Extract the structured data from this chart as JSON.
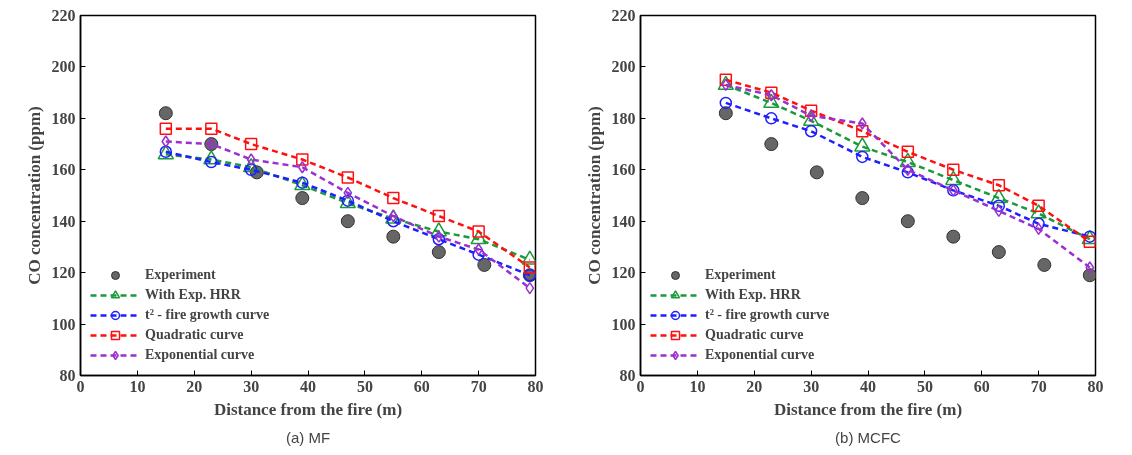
{
  "chart_data": [
    {
      "type": "line",
      "xlabel": "Distance from the fire (m)",
      "ylabel": "CO concentration (ppm)",
      "annotations": [
        "(a) MF"
      ],
      "xlim": [
        0,
        80
      ],
      "ylim": [
        80,
        220
      ],
      "xticks": [
        0,
        10,
        20,
        30,
        40,
        50,
        60,
        70,
        80
      ],
      "yticks": [
        80,
        100,
        120,
        140,
        160,
        180,
        200,
        220
      ],
      "grid": false,
      "legend": "bottom left",
      "line_style": "dashed",
      "series": [
        {
          "name": "Experiment",
          "type": "scatter",
          "marker": "circle",
          "color": "#666666",
          "x": [
            15,
            23,
            31,
            39,
            47,
            55,
            63,
            71,
            79
          ],
          "values": [
            182,
            170,
            159,
            149,
            140,
            134,
            128,
            123,
            119
          ]
        },
        {
          "name": "With Exp. HRR",
          "marker": "triangle",
          "color": "#1a9a3a",
          "x": [
            15,
            23,
            30,
            39,
            47,
            55,
            63,
            70,
            79
          ],
          "values": [
            166,
            164,
            161,
            154,
            147,
            141,
            136,
            133,
            125
          ]
        },
        {
          "name": "t² - fire growth curve",
          "marker": "circle",
          "color": "#1f1fff",
          "x": [
            15,
            23,
            30,
            39,
            47,
            55,
            63,
            70,
            79
          ],
          "values": [
            167,
            163,
            160,
            155,
            148,
            140,
            133,
            127,
            119
          ]
        },
        {
          "name": "Quadratic curve",
          "marker": "square",
          "color": "#ff1010",
          "x": [
            15,
            23,
            30,
            39,
            47,
            55,
            63,
            70,
            79
          ],
          "values": [
            176,
            176,
            170,
            164,
            157,
            149,
            142,
            136,
            122
          ]
        },
        {
          "name": "Exponential curve",
          "marker": "diamond",
          "color": "#9b30d0",
          "x": [
            15,
            23,
            30,
            39,
            47,
            55,
            63,
            70,
            79
          ],
          "values": [
            171,
            170,
            164,
            161,
            151,
            142,
            134,
            129,
            114
          ]
        }
      ]
    },
    {
      "type": "line",
      "xlabel": "Distance from the fire (m)",
      "ylabel": "CO concentration (ppm)",
      "annotations": [
        "(b) MCFC"
      ],
      "xlim": [
        0,
        80
      ],
      "ylim": [
        80,
        220
      ],
      "xticks": [
        0,
        10,
        20,
        30,
        40,
        50,
        60,
        70,
        80
      ],
      "yticks": [
        80,
        100,
        120,
        140,
        160,
        180,
        200,
        220
      ],
      "grid": false,
      "legend": "bottom left",
      "line_style": "dashed",
      "series": [
        {
          "name": "Experiment",
          "type": "scatter",
          "marker": "circle",
          "color": "#666666",
          "x": [
            15,
            23,
            31,
            39,
            47,
            55,
            63,
            71,
            79
          ],
          "values": [
            182,
            170,
            159,
            149,
            140,
            134,
            128,
            123,
            119
          ]
        },
        {
          "name": "With Exp. HRR",
          "marker": "triangle",
          "color": "#1a9a3a",
          "x": [
            15,
            23,
            30,
            39,
            47,
            55,
            63,
            70,
            79
          ],
          "values": [
            193,
            186,
            179,
            169,
            163,
            156,
            149,
            143,
            133
          ]
        },
        {
          "name": "t² - fire growth curve",
          "marker": "circle",
          "color": "#1f1fff",
          "x": [
            15,
            23,
            30,
            39,
            47,
            55,
            63,
            70,
            79
          ],
          "values": [
            186,
            180,
            175,
            165,
            159,
            152,
            146,
            139,
            134
          ]
        },
        {
          "name": "Quadratic curve",
          "marker": "square",
          "color": "#ff1010",
          "x": [
            15,
            23,
            30,
            39,
            47,
            55,
            63,
            70,
            79
          ],
          "values": [
            195,
            190,
            183,
            175,
            167,
            160,
            154,
            146,
            132
          ]
        },
        {
          "name": "Exponential curve",
          "marker": "diamond",
          "color": "#9b30d0",
          "x": [
            15,
            23,
            30,
            39,
            47,
            55,
            63,
            70,
            79
          ],
          "values": [
            193,
            189,
            181,
            178,
            160,
            152,
            144,
            137,
            122
          ]
        }
      ]
    }
  ]
}
